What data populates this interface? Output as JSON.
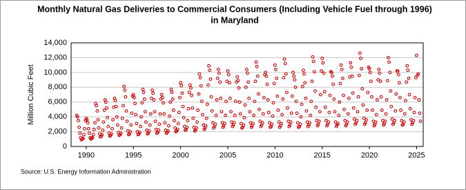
{
  "chart_data": {
    "type": "scatter",
    "title": "Monthly Natural Gas Deliveries to Commercial Consumers (Including Vehicle Fuel through 1996)",
    "subtitle": "in Maryland",
    "y_label": "Million Cubic Feet",
    "source": "Source: U.S. Energy Information Administration",
    "xlim": [
      1988.4,
      2025.7
    ],
    "xticks": [
      1990,
      1995,
      2000,
      2005,
      2010,
      2015,
      2020,
      2025
    ],
    "ylim": [
      0,
      14000
    ],
    "yticks": [
      0,
      {
        "value": 2000,
        "label": "2,000"
      },
      {
        "value": 4000,
        "label": "4,000"
      },
      {
        "value": 6000,
        "label": "6,000"
      },
      {
        "value": 8000,
        "label": "8,000"
      },
      {
        "value": 10000,
        "label": "10,000"
      },
      {
        "value": 12000,
        "label": "12,000"
      },
      {
        "value": 14000,
        "label": "14,000"
      }
    ],
    "grid": true,
    "color": "#cc0000",
    "x": [
      1989,
      1989.08,
      1989.17,
      1989.25,
      1989.33,
      1989.42,
      1989.5,
      1989.58,
      1989.67,
      1989.75,
      1989.83,
      1989.92,
      1990,
      1990.08,
      1990.17,
      1990.25,
      1990.33,
      1990.42,
      1990.5,
      1990.58,
      1990.67,
      1990.75,
      1990.83,
      1990.92,
      1991,
      1991.08,
      1991.17,
      1991.25,
      1991.33,
      1991.42,
      1991.5,
      1991.58,
      1991.67,
      1991.75,
      1991.83,
      1991.92,
      1992,
      1992.08,
      1992.17,
      1992.25,
      1992.33,
      1992.42,
      1992.5,
      1992.58,
      1992.67,
      1992.75,
      1992.83,
      1992.92,
      1993,
      1993.08,
      1993.17,
      1993.25,
      1993.33,
      1993.42,
      1993.5,
      1993.58,
      1993.67,
      1993.75,
      1993.83,
      1993.92,
      1994,
      1994.08,
      1994.17,
      1994.25,
      1994.33,
      1994.42,
      1994.5,
      1994.58,
      1994.67,
      1994.75,
      1994.83,
      1994.92,
      1995,
      1995.08,
      1995.17,
      1995.25,
      1995.33,
      1995.42,
      1995.5,
      1995.58,
      1995.67,
      1995.75,
      1995.83,
      1995.92,
      1996,
      1996.08,
      1996.17,
      1996.25,
      1996.33,
      1996.42,
      1996.5,
      1996.58,
      1996.67,
      1996.75,
      1996.83,
      1996.92,
      1997,
      1997.08,
      1997.17,
      1997.25,
      1997.33,
      1997.42,
      1997.5,
      1997.58,
      1997.67,
      1997.75,
      1997.83,
      1997.92,
      1998,
      1998.08,
      1998.17,
      1998.25,
      1998.33,
      1998.42,
      1998.5,
      1998.58,
      1998.67,
      1998.75,
      1998.83,
      1998.92,
      1999,
      1999.08,
      1999.17,
      1999.25,
      1999.33,
      1999.42,
      1999.5,
      1999.58,
      1999.67,
      1999.75,
      1999.83,
      1999.92,
      2000,
      2000.08,
      2000.17,
      2000.25,
      2000.33,
      2000.42,
      2000.5,
      2000.58,
      2000.67,
      2000.75,
      2000.83,
      2000.92,
      2001,
      2001.08,
      2001.17,
      2001.25,
      2001.33,
      2001.42,
      2001.5,
      2001.58,
      2001.67,
      2001.75,
      2001.83,
      2001.92,
      2002,
      2002.08,
      2002.17,
      2002.25,
      2002.33,
      2002.42,
      2002.5,
      2002.58,
      2002.67,
      2002.75,
      2002.83,
      2002.92,
      2003,
      2003.08,
      2003.17,
      2003.25,
      2003.33,
      2003.42,
      2003.5,
      2003.58,
      2003.67,
      2003.75,
      2003.83,
      2003.92,
      2004,
      2004.08,
      2004.17,
      2004.25,
      2004.33,
      2004.42,
      2004.5,
      2004.58,
      2004.67,
      2004.75,
      2004.83,
      2004.92,
      2005,
      2005.08,
      2005.17,
      2005.25,
      2005.33,
      2005.42,
      2005.5,
      2005.58,
      2005.67,
      2005.75,
      2005.83,
      2005.92,
      2006,
      2006.08,
      2006.17,
      2006.25,
      2006.33,
      2006.42,
      2006.5,
      2006.58,
      2006.67,
      2006.75,
      2006.83,
      2006.92,
      2007,
      2007.08,
      2007.17,
      2007.25,
      2007.33,
      2007.42,
      2007.5,
      2007.58,
      2007.67,
      2007.75,
      2007.83,
      2007.92,
      2008,
      2008.08,
      2008.17,
      2008.25,
      2008.33,
      2008.42,
      2008.5,
      2008.58,
      2008.67,
      2008.75,
      2008.83,
      2008.92,
      2009,
      2009.08,
      2009.17,
      2009.25,
      2009.33,
      2009.42,
      2009.5,
      2009.58,
      2009.67,
      2009.75,
      2009.83,
      2009.92,
      2010,
      2010.08,
      2010.17,
      2010.25,
      2010.33,
      2010.42,
      2010.5,
      2010.58,
      2010.67,
      2010.75,
      2010.83,
      2010.92,
      2011,
      2011.08,
      2011.17,
      2011.25,
      2011.33,
      2011.42,
      2011.5,
      2011.58,
      2011.67,
      2011.75,
      2011.83,
      2011.92,
      2012,
      2012.08,
      2012.17,
      2012.25,
      2012.33,
      2012.42,
      2012.5,
      2012.58,
      2012.67,
      2012.75,
      2012.83,
      2012.92,
      2013,
      2013.08,
      2013.17,
      2013.25,
      2013.33,
      2013.42,
      2013.5,
      2013.58,
      2013.67,
      2013.75,
      2013.83,
      2013.92,
      2014,
      2014.08,
      2014.17,
      2014.25,
      2014.33,
      2014.42,
      2014.5,
      2014.58,
      2014.67,
      2014.75,
      2014.83,
      2014.92,
      2015,
      2015.08,
      2015.17,
      2015.25,
      2015.33,
      2015.42,
      2015.5,
      2015.58,
      2015.67,
      2015.75,
      2015.83,
      2015.92,
      2016,
      2016.08,
      2016.17,
      2016.25,
      2016.33,
      2016.42,
      2016.5,
      2016.58,
      2016.67,
      2016.75,
      2016.83,
      2016.92,
      2017,
      2017.08,
      2017.17,
      2017.25,
      2017.33,
      2017.42,
      2017.5,
      2017.58,
      2017.67,
      2017.75,
      2017.83,
      2017.92,
      2018,
      2018.08,
      2018.17,
      2018.25,
      2018.33,
      2018.42,
      2018.5,
      2018.58,
      2018.67,
      2018.75,
      2018.83,
      2018.92,
      2019,
      2019.08,
      2019.17,
      2019.25,
      2019.33,
      2019.42,
      2019.5,
      2019.58,
      2019.67,
      2019.75,
      2019.83,
      2019.92,
      2020,
      2020.08,
      2020.17,
      2020.25,
      2020.33,
      2020.42,
      2020.5,
      2020.58,
      2020.67,
      2020.75,
      2020.83,
      2020.92,
      2021,
      2021.08,
      2021.17,
      2021.25,
      2021.33,
      2021.42,
      2021.5,
      2021.58,
      2021.67,
      2021.75,
      2021.83,
      2021.92,
      2022,
      2022.08,
      2022.17,
      2022.25,
      2022.33,
      2022.42,
      2022.5,
      2022.58,
      2022.67,
      2022.75,
      2022.83,
      2022.92,
      2023,
      2023.08,
      2023.17,
      2023.25,
      2023.33,
      2023.42,
      2023.5,
      2023.58,
      2023.67,
      2023.75,
      2023.83,
      2023.92,
      2024,
      2024.08,
      2024.17,
      2024.25,
      2024.33,
      2024.42,
      2024.5,
      2024.58,
      2024.67,
      2024.75,
      2024.83,
      2024.92,
      2025,
      2025.08,
      2025.17,
      2025.25,
      2025.33,
      2025.42
    ],
    "values": [
      4200,
      4000,
      3500,
      2600,
      1800,
      1200,
      900,
      1000,
      1100,
      1600,
      2400,
      3500,
      3800,
      3600,
      3200,
      2400,
      1800,
      1200,
      1000,
      1100,
      1200,
      1600,
      2300,
      3200,
      5800,
      5500,
      4800,
      3600,
      2500,
      1700,
      1300,
      1400,
      1600,
      2200,
      3300,
      4900,
      6300,
      6000,
      5200,
      3900,
      2700,
      1800,
      1400,
      1500,
      1700,
      2400,
      3600,
      5300,
      6500,
      6200,
      5400,
      4000,
      2900,
      1900,
      1500,
      1600,
      1800,
      2500,
      3800,
      5500,
      8100,
      7600,
      6700,
      4800,
      3400,
      2100,
      1600,
      1700,
      2000,
      2900,
      4500,
      6800,
      7000,
      6600,
      5800,
      4300,
      3100,
      2000,
      1600,
      1700,
      1900,
      2700,
      4000,
      5900,
      7700,
      7300,
      6400,
      4700,
      3300,
      2200,
      1700,
      1800,
      2100,
      2900,
      4400,
      6500,
      7600,
      7200,
      6300,
      4700,
      3400,
      2300,
      1800,
      1900,
      2200,
      3000,
      4400,
      6400,
      7000,
      6600,
      5900,
      4400,
      3200,
      2200,
      1800,
      1900,
      2100,
      2800,
      4100,
      6000,
      7700,
      7300,
      6400,
      4900,
      3500,
      2500,
      2000,
      2100,
      2300,
      3100,
      4600,
      6600,
      8600,
      8200,
      7200,
      5400,
      3900,
      2700,
      2200,
      2300,
      2600,
      3500,
      5100,
      7300,
      8300,
      7900,
      6900,
      5200,
      3800,
      2600,
      2100,
      2200,
      2500,
      3300,
      4900,
      7100,
      9800,
      9300,
      8200,
      6100,
      4300,
      2900,
      2300,
      2500,
      2800,
      3800,
      5700,
      8300,
      10900,
      10300,
      9100,
      6700,
      4800,
      3200,
      2500,
      2700,
      3000,
      4200,
      6300,
      9200,
      10400,
      9900,
      8700,
      6500,
      4700,
      3200,
      2600,
      2800,
      3100,
      4200,
      6100,
      8800,
      10200,
      9700,
      8600,
      6500,
      4700,
      3300,
      2700,
      2900,
      3200,
      4200,
      6100,
      8700,
      9400,
      8900,
      7900,
      6000,
      4400,
      3100,
      2500,
      2600,
      2900,
      3900,
      5600,
      8000,
      10400,
      9900,
      8700,
      6500,
      4700,
      3200,
      2600,
      2800,
      3100,
      4200,
      6100,
      8800,
      11400,
      10800,
      9500,
      7100,
      5000,
      3400,
      2700,
      2900,
      3200,
      4400,
      6600,
      9700,
      10000,
      9500,
      8400,
      6300,
      4600,
      3200,
      2600,
      2700,
      3000,
      4100,
      5900,
      8500,
      11000,
      10400,
      9200,
      6800,
      4900,
      3300,
      2600,
      2800,
      3100,
      4300,
      6400,
      9300,
      11800,
      11200,
      9800,
      7300,
      5200,
      3400,
      2700,
      2900,
      3300,
      4500,
      6800,
      10000,
      9500,
      9000,
      8000,
      6100,
      4500,
      3200,
      2600,
      2700,
      3000,
      4000,
      5700,
      8100,
      10300,
      9800,
      8600,
      6500,
      4800,
      3300,
      2700,
      2900,
      3200,
      4200,
      6100,
      8800,
      12100,
      11500,
      10100,
      7500,
      5300,
      3500,
      2800,
      3000,
      3400,
      4700,
      7000,
      10200,
      11900,
      11300,
      9900,
      7400,
      5300,
      3500,
      2800,
      3000,
      3300,
      4600,
      6900,
      10100,
      10000,
      9500,
      8400,
      6400,
      4700,
      3300,
      2700,
      2900,
      3100,
      4200,
      6000,
      8500,
      11000,
      10400,
      9200,
      6900,
      5000,
      3500,
      2800,
      3000,
      3300,
      4400,
      6500,
      9400,
      11300,
      10700,
      9500,
      7200,
      5200,
      3700,
      3000,
      3200,
      3500,
      4700,
      6700,
      9600,
      12600,
      11900,
      10500,
      7800,
      5600,
      3800,
      3000,
      3200,
      3600,
      4900,
      7300,
      10700,
      10500,
      10000,
      8800,
      6700,
      4900,
      3400,
      2800,
      3000,
      3300,
      4300,
      6300,
      9000,
      10400,
      9900,
      8800,
      6700,
      4900,
      3500,
      2900,
      3100,
      3400,
      4400,
      6300,
      8900,
      12000,
      11400,
      10000,
      7500,
      5400,
      3700,
      3000,
      3200,
      3500,
      4800,
      7100,
      10200,
      10200,
      9700,
      8600,
      6600,
      4900,
      3500,
      2900,
      3000,
      3300,
      4400,
      6200,
      8700,
      10900,
      10300,
      9200,
      7000,
      5100,
      3600,
      3000,
      3200,
      3500,
      4600,
      6600,
      9300,
      12300,
      9600,
      9800,
      6300,
      4500,
      3400
    ]
  }
}
